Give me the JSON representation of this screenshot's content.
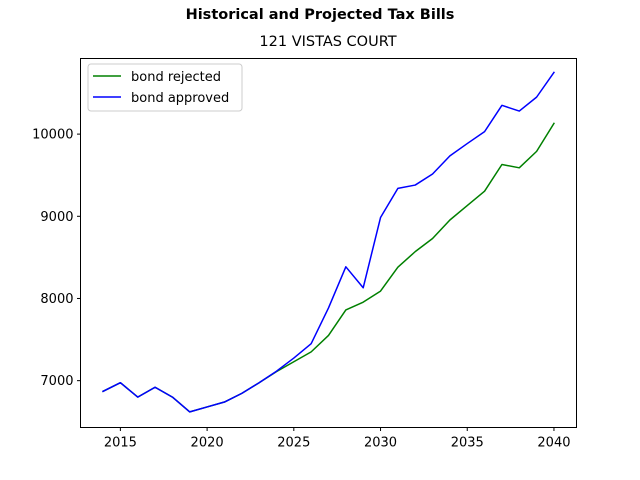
{
  "figure": {
    "suptitle": "Historical and Projected Tax Bills",
    "title": "121 VISTAS COURT"
  },
  "chart_data": {
    "type": "line",
    "title": "121 VISTAS COURT",
    "xlabel": "",
    "ylabel": "",
    "xlim": [
      2012.7,
      2041.3
    ],
    "ylim": [
      6430,
      10920
    ],
    "xticks": [
      2015,
      2020,
      2025,
      2030,
      2035,
      2040
    ],
    "yticks": [
      7000,
      8000,
      9000,
      10000
    ],
    "grid": false,
    "legend_position": "upper left",
    "x": [
      2014,
      2015,
      2016,
      2017,
      2018,
      2019,
      2020,
      2021,
      2022,
      2023,
      2024,
      2025,
      2026,
      2027,
      2028,
      2029,
      2030,
      2031,
      2032,
      2033,
      2034,
      2035,
      2036,
      2037,
      2038,
      2039,
      2040
    ],
    "series": [
      {
        "name": "bond rejected",
        "color": "#008000",
        "values": [
          6870,
          6975,
          6800,
          6920,
          6800,
          6620,
          6680,
          6740,
          6845,
          6975,
          7110,
          7230,
          7350,
          7550,
          7860,
          7955,
          8090,
          8380,
          8570,
          8730,
          8955,
          9130,
          9305,
          9630,
          9590,
          9790,
          10130
        ]
      },
      {
        "name": "bond approved",
        "color": "#0000ff",
        "values": [
          6870,
          6975,
          6800,
          6920,
          6800,
          6620,
          6680,
          6740,
          6845,
          6975,
          7115,
          7275,
          7450,
          7885,
          8385,
          8130,
          8985,
          9340,
          9380,
          9515,
          9735,
          9885,
          10030,
          10350,
          10280,
          10450,
          10750
        ]
      }
    ]
  }
}
